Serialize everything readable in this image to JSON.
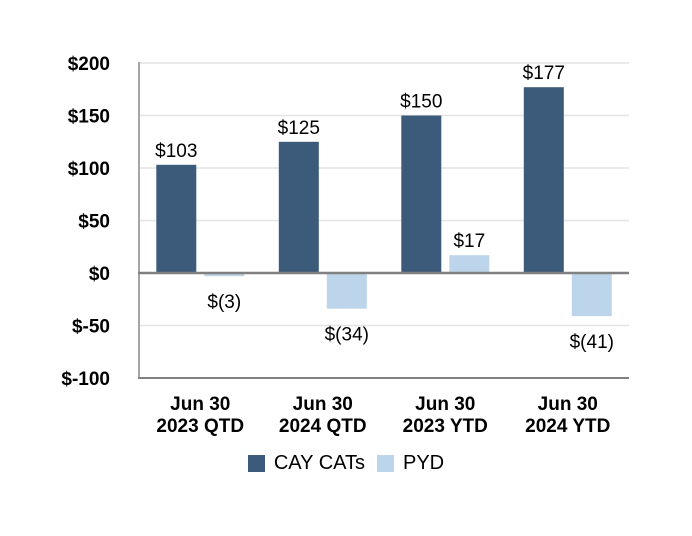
{
  "chart_data": {
    "type": "bar",
    "title": "",
    "xlabel": "",
    "ylabel": "",
    "grid": true,
    "ylim": [
      -100,
      200
    ],
    "categories": [
      [
        "Jun 30",
        "2023 QTD"
      ],
      [
        "Jun 30",
        "2024 QTD"
      ],
      [
        "Jun 30",
        "2023 YTD"
      ],
      [
        "Jun 30",
        "2024 YTD"
      ]
    ],
    "series": [
      {
        "name": "CAY CATs",
        "color": "#3c5b7a",
        "values": [
          103,
          125,
          150,
          177
        ],
        "data_labels": [
          "$103",
          "$125",
          "$150",
          "$177"
        ]
      },
      {
        "name": "PYD",
        "color": "#bcd5ea",
        "values": [
          -3,
          -34,
          17,
          -41
        ],
        "data_labels": [
          "$(3)",
          "$(34)",
          "$17",
          "$(41)"
        ]
      }
    ],
    "y_axis": {
      "min": -100,
      "max": 200,
      "step": 50,
      "tick_values": [
        200,
        150,
        100,
        50,
        0,
        -50,
        -100
      ],
      "tick_labels": [
        "$200",
        "$150",
        "$100",
        "$50",
        "$0",
        "$-50",
        "$-100"
      ]
    },
    "legend": {
      "position": "bottom",
      "entries": [
        "CAY CATs",
        "PYD"
      ]
    },
    "style_colors": {
      "zero_line": "#808080",
      "bottom_axis": "#808080",
      "left_axis": "#a6a6a6",
      "gridline": "#e4e4e4",
      "text": "#000000"
    }
  }
}
